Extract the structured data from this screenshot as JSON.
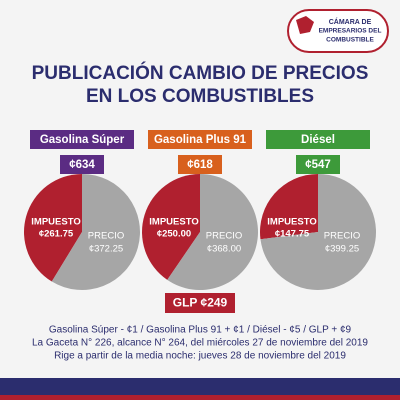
{
  "header": {
    "title_lines": [
      "PUBLICACIÓN CAMBIO DE PRECIOS",
      "EN LOS COMBUSTIBLES"
    ],
    "logo_lines": [
      "CÁMARA DE",
      "EMPRESARIOS DEL",
      "COMBUSTIBLE"
    ]
  },
  "chart_data": [
    {
      "type": "pie",
      "title": "Gasolina Súper",
      "title_color": "#5b2c83",
      "subtitle": "¢634",
      "categories": [
        "IMPUESTO",
        "PRECIO"
      ],
      "values": [
        261.75,
        372.25
      ],
      "value_labels": [
        "¢261.75",
        "¢372.25"
      ],
      "colors": [
        "#b0202f",
        "#a6a6a6"
      ]
    },
    {
      "type": "pie",
      "title": "Gasolina Plus 91",
      "title_color": "#d8601d",
      "subtitle": "¢618",
      "categories": [
        "IMPUESTO",
        "PRECIO"
      ],
      "values": [
        250,
        368
      ],
      "value_labels": [
        "¢250.00",
        "¢368.00"
      ],
      "colors": [
        "#b0202f",
        "#a6a6a6"
      ]
    },
    {
      "type": "pie",
      "title": "Diésel",
      "title_color": "#3d9a3a",
      "subtitle": "¢547",
      "categories": [
        "IMPUESTO",
        "PRECIO"
      ],
      "values": [
        147.75,
        399.25
      ],
      "value_labels": [
        "¢147.75",
        "¢399.25"
      ],
      "colors": [
        "#b0202f",
        "#a6a6a6"
      ]
    }
  ],
  "glp": "GLP ¢249",
  "footer": [
    "Gasolina Súper - ¢1 / Gasolina Plus 91 + ¢1 / Diésel - ¢5 / GLP + ¢9",
    "La Gaceta N° 226, alcance N° 264, del miércoles 27 de noviembre del 2019",
    "Rige a partir de la media noche: jueves 28 de noviembre del 2019"
  ]
}
